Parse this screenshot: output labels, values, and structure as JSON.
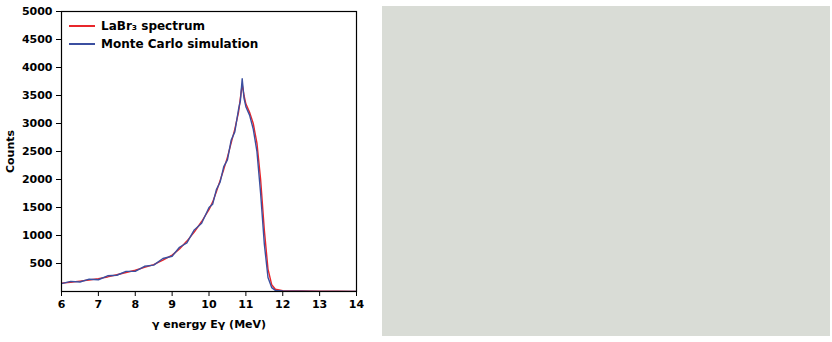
{
  "chart_data": {
    "type": "line",
    "xlabel": "γ energy Eγ (MeV)",
    "ylabel": "Counts",
    "x": [
      6.0,
      6.25,
      6.5,
      6.75,
      7.0,
      7.25,
      7.5,
      7.75,
      8.0,
      8.25,
      8.5,
      8.75,
      9.0,
      9.2,
      9.4,
      9.6,
      9.8,
      10.0,
      10.1,
      10.2,
      10.3,
      10.4,
      10.5,
      10.6,
      10.7,
      10.8,
      10.85,
      10.9,
      10.95,
      11.0,
      11.1,
      11.2,
      11.3,
      11.4,
      11.5,
      11.6,
      11.7,
      11.8,
      12.0,
      12.5,
      13.0,
      13.5,
      14.0
    ],
    "series": [
      {
        "name": "LaBr₃ spectrum",
        "color": "#e8262b",
        "values": [
          150,
          165,
          185,
          205,
          230,
          260,
          300,
          340,
          380,
          430,
          480,
          560,
          650,
          760,
          900,
          1060,
          1250,
          1460,
          1600,
          1780,
          1980,
          2180,
          2400,
          2650,
          2900,
          3200,
          3450,
          3700,
          3500,
          3350,
          3200,
          3000,
          2650,
          2000,
          1100,
          400,
          120,
          40,
          15,
          8,
          5,
          4,
          3
        ]
      },
      {
        "name": "Monte Carlo simulation",
        "color": "#3b4fa0",
        "values": [
          140,
          180,
          170,
          220,
          210,
          280,
          290,
          360,
          360,
          450,
          470,
          590,
          630,
          790,
          870,
          1100,
          1220,
          1500,
          1560,
          1820,
          1950,
          2230,
          2350,
          2700,
          2850,
          3250,
          3400,
          3800,
          3450,
          3300,
          3150,
          2900,
          2500,
          1750,
          850,
          250,
          70,
          20,
          8,
          5,
          3,
          3,
          2
        ]
      }
    ],
    "xlim": [
      6,
      14
    ],
    "xticks": [
      6,
      7,
      8,
      9,
      10,
      11,
      12,
      13,
      14
    ],
    "ylim": [
      0,
      5000
    ],
    "yticks": [
      500,
      1000,
      1500,
      2000,
      2500,
      3000,
      3500,
      4000,
      4500,
      5000
    ],
    "legend": "top-left",
    "grid": false
  }
}
